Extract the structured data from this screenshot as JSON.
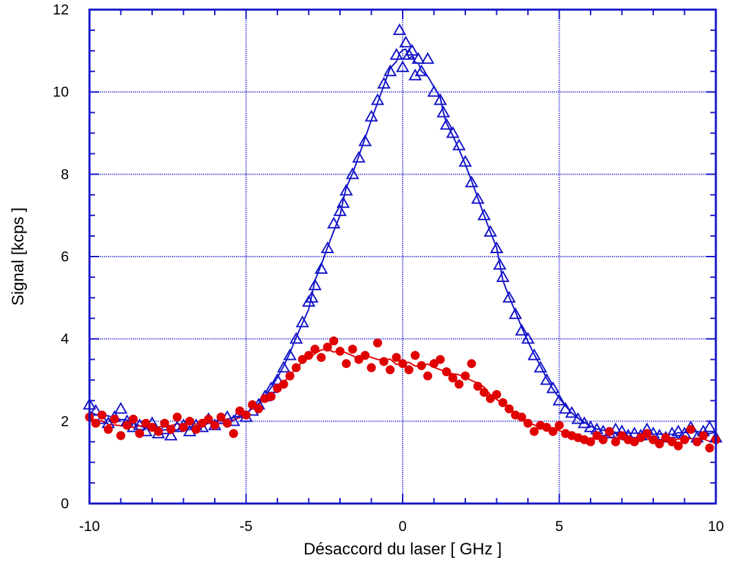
{
  "chart_data": {
    "type": "scatter",
    "title": "",
    "xlabel": "Désaccord du laser  [ GHz ]",
    "ylabel": "Signal  [kcps ]",
    "xlim": [
      -10,
      10
    ],
    "ylim": [
      0,
      12
    ],
    "x_ticks": [
      -10,
      -5,
      0,
      5,
      10
    ],
    "x_tick_labels": [
      "-10",
      "-5",
      "0",
      "5",
      "10"
    ],
    "y_ticks": [
      0,
      2,
      4,
      6,
      8,
      10,
      12
    ],
    "y_tick_labels": [
      "0",
      "2",
      "4",
      "6",
      "8",
      "10",
      "12"
    ],
    "grid": true,
    "legend": "none",
    "series": [
      {
        "marker": "open-triangle",
        "color": "#1414c8",
        "fit_line": true,
        "points": [
          [
            -10.0,
            2.4
          ],
          [
            -9.8,
            2.25
          ],
          [
            -9.6,
            2.05
          ],
          [
            -9.4,
            1.95
          ],
          [
            -9.2,
            2.1
          ],
          [
            -9.0,
            2.3
          ],
          [
            -8.8,
            2.0
          ],
          [
            -8.6,
            1.85
          ],
          [
            -8.4,
            1.9
          ],
          [
            -8.2,
            1.75
          ],
          [
            -8.0,
            1.95
          ],
          [
            -7.8,
            1.7
          ],
          [
            -7.6,
            1.8
          ],
          [
            -7.4,
            1.65
          ],
          [
            -7.2,
            1.85
          ],
          [
            -7.0,
            1.9
          ],
          [
            -6.8,
            1.75
          ],
          [
            -6.6,
            1.9
          ],
          [
            -6.4,
            1.85
          ],
          [
            -6.2,
            2.05
          ],
          [
            -6.0,
            1.9
          ],
          [
            -5.8,
            2.05
          ],
          [
            -5.6,
            2.1
          ],
          [
            -5.4,
            2.0
          ],
          [
            -5.2,
            2.2
          ],
          [
            -5.0,
            2.1
          ],
          [
            -4.8,
            2.25
          ],
          [
            -4.6,
            2.4
          ],
          [
            -4.4,
            2.6
          ],
          [
            -4.2,
            2.8
          ],
          [
            -4.0,
            3.0
          ],
          [
            -3.8,
            3.3
          ],
          [
            -3.6,
            3.6
          ],
          [
            -3.4,
            4.0
          ],
          [
            -3.2,
            4.4
          ],
          [
            -3.0,
            4.9
          ],
          [
            -2.9,
            5.0
          ],
          [
            -2.8,
            5.3
          ],
          [
            -2.6,
            5.7
          ],
          [
            -2.4,
            6.2
          ],
          [
            -2.2,
            6.8
          ],
          [
            -2.0,
            7.1
          ],
          [
            -1.9,
            7.3
          ],
          [
            -1.8,
            7.6
          ],
          [
            -1.6,
            8.0
          ],
          [
            -1.4,
            8.4
          ],
          [
            -1.2,
            8.8
          ],
          [
            -1.0,
            9.4
          ],
          [
            -0.8,
            9.8
          ],
          [
            -0.6,
            10.2
          ],
          [
            -0.4,
            10.5
          ],
          [
            -0.2,
            10.9
          ],
          [
            -0.1,
            11.5
          ],
          [
            0.0,
            10.6
          ],
          [
            0.1,
            11.2
          ],
          [
            0.2,
            10.9
          ],
          [
            0.3,
            11.0
          ],
          [
            0.4,
            10.4
          ],
          [
            0.5,
            10.8
          ],
          [
            0.6,
            10.5
          ],
          [
            0.8,
            10.8
          ],
          [
            1.0,
            10.0
          ],
          [
            1.2,
            9.8
          ],
          [
            1.3,
            9.5
          ],
          [
            1.4,
            9.2
          ],
          [
            1.6,
            9.0
          ],
          [
            1.8,
            8.7
          ],
          [
            2.0,
            8.3
          ],
          [
            2.2,
            7.8
          ],
          [
            2.4,
            7.4
          ],
          [
            2.6,
            7.0
          ],
          [
            2.8,
            6.6
          ],
          [
            3.0,
            6.2
          ],
          [
            3.1,
            5.8
          ],
          [
            3.2,
            5.5
          ],
          [
            3.4,
            5.0
          ],
          [
            3.6,
            4.6
          ],
          [
            3.8,
            4.2
          ],
          [
            4.0,
            4.0
          ],
          [
            4.2,
            3.6
          ],
          [
            4.4,
            3.3
          ],
          [
            4.6,
            3.0
          ],
          [
            4.8,
            2.8
          ],
          [
            5.0,
            2.5
          ],
          [
            5.2,
            2.3
          ],
          [
            5.4,
            2.2
          ],
          [
            5.6,
            2.05
          ],
          [
            5.8,
            1.95
          ],
          [
            6.0,
            1.85
          ],
          [
            6.2,
            1.8
          ],
          [
            6.4,
            1.75
          ],
          [
            6.6,
            1.7
          ],
          [
            6.8,
            1.8
          ],
          [
            7.0,
            1.75
          ],
          [
            7.2,
            1.65
          ],
          [
            7.4,
            1.7
          ],
          [
            7.6,
            1.65
          ],
          [
            7.8,
            1.8
          ],
          [
            8.0,
            1.7
          ],
          [
            8.2,
            1.65
          ],
          [
            8.4,
            1.6
          ],
          [
            8.6,
            1.7
          ],
          [
            8.8,
            1.75
          ],
          [
            9.0,
            1.7
          ],
          [
            9.2,
            1.85
          ],
          [
            9.4,
            1.6
          ],
          [
            9.6,
            1.75
          ],
          [
            9.8,
            1.85
          ],
          [
            10.0,
            1.6
          ]
        ]
      },
      {
        "marker": "filled-circle",
        "color": "#e00000",
        "fit_line": true,
        "points": [
          [
            -10.0,
            2.1
          ],
          [
            -9.8,
            1.95
          ],
          [
            -9.6,
            2.15
          ],
          [
            -9.4,
            1.8
          ],
          [
            -9.2,
            2.05
          ],
          [
            -9.0,
            1.65
          ],
          [
            -8.8,
            1.9
          ],
          [
            -8.6,
            2.05
          ],
          [
            -8.4,
            1.7
          ],
          [
            -8.2,
            1.95
          ],
          [
            -8.0,
            1.85
          ],
          [
            -7.8,
            1.75
          ],
          [
            -7.6,
            1.95
          ],
          [
            -7.4,
            1.8
          ],
          [
            -7.2,
            2.1
          ],
          [
            -7.0,
            1.85
          ],
          [
            -6.8,
            2.0
          ],
          [
            -6.6,
            1.8
          ],
          [
            -6.4,
            1.95
          ],
          [
            -6.2,
            2.05
          ],
          [
            -6.0,
            1.9
          ],
          [
            -5.8,
            2.1
          ],
          [
            -5.6,
            1.95
          ],
          [
            -5.4,
            1.7
          ],
          [
            -5.2,
            2.25
          ],
          [
            -5.0,
            2.15
          ],
          [
            -4.8,
            2.4
          ],
          [
            -4.6,
            2.3
          ],
          [
            -4.4,
            2.55
          ],
          [
            -4.2,
            2.6
          ],
          [
            -4.0,
            2.8
          ],
          [
            -3.8,
            2.9
          ],
          [
            -3.6,
            3.1
          ],
          [
            -3.4,
            3.3
          ],
          [
            -3.2,
            3.5
          ],
          [
            -3.0,
            3.6
          ],
          [
            -2.8,
            3.75
          ],
          [
            -2.6,
            3.55
          ],
          [
            -2.4,
            3.8
          ],
          [
            -2.2,
            3.95
          ],
          [
            -2.0,
            3.7
          ],
          [
            -1.8,
            3.4
          ],
          [
            -1.6,
            3.75
          ],
          [
            -1.4,
            3.5
          ],
          [
            -1.2,
            3.6
          ],
          [
            -1.0,
            3.3
          ],
          [
            -0.8,
            3.9
          ],
          [
            -0.6,
            3.45
          ],
          [
            -0.4,
            3.25
          ],
          [
            -0.2,
            3.55
          ],
          [
            0.0,
            3.4
          ],
          [
            0.2,
            3.25
          ],
          [
            0.4,
            3.6
          ],
          [
            0.6,
            3.35
          ],
          [
            0.8,
            3.1
          ],
          [
            1.0,
            3.4
          ],
          [
            1.2,
            3.5
          ],
          [
            1.4,
            3.2
          ],
          [
            1.6,
            3.05
          ],
          [
            1.8,
            2.9
          ],
          [
            2.0,
            3.1
          ],
          [
            2.2,
            3.4
          ],
          [
            2.4,
            2.85
          ],
          [
            2.6,
            2.7
          ],
          [
            2.8,
            2.55
          ],
          [
            3.0,
            2.65
          ],
          [
            3.2,
            2.45
          ],
          [
            3.4,
            2.3
          ],
          [
            3.6,
            2.15
          ],
          [
            3.8,
            2.1
          ],
          [
            4.0,
            1.95
          ],
          [
            4.2,
            1.75
          ],
          [
            4.4,
            1.9
          ],
          [
            4.6,
            1.85
          ],
          [
            4.8,
            1.75
          ],
          [
            5.0,
            1.9
          ],
          [
            5.2,
            1.7
          ],
          [
            5.4,
            1.65
          ],
          [
            5.6,
            1.6
          ],
          [
            5.8,
            1.55
          ],
          [
            6.0,
            1.5
          ],
          [
            6.2,
            1.65
          ],
          [
            6.4,
            1.55
          ],
          [
            6.6,
            1.75
          ],
          [
            6.8,
            1.5
          ],
          [
            7.0,
            1.65
          ],
          [
            7.2,
            1.55
          ],
          [
            7.4,
            1.5
          ],
          [
            7.6,
            1.6
          ],
          [
            7.8,
            1.7
          ],
          [
            8.0,
            1.55
          ],
          [
            8.2,
            1.45
          ],
          [
            8.4,
            1.6
          ],
          [
            8.6,
            1.5
          ],
          [
            8.8,
            1.4
          ],
          [
            9.0,
            1.55
          ],
          [
            9.2,
            1.8
          ],
          [
            9.4,
            1.5
          ],
          [
            9.6,
            1.65
          ],
          [
            9.8,
            1.35
          ],
          [
            10.0,
            1.55
          ]
        ]
      }
    ]
  }
}
